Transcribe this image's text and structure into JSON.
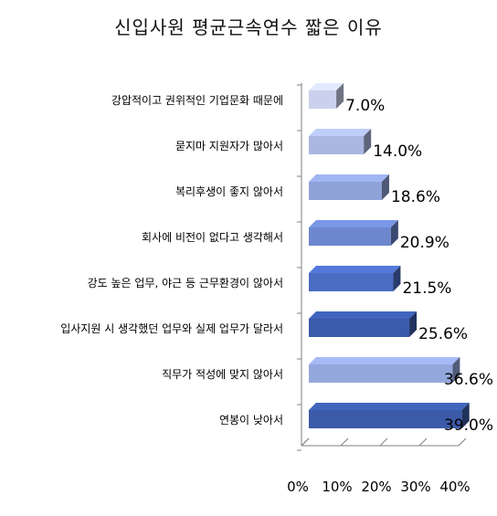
{
  "chart_data": {
    "type": "bar",
    "orientation": "horizontal",
    "style": "3d",
    "title": "신입사원 평균근속연수 짧은 이유",
    "categories": [
      "강압적이고 권위적인 기업문화 때문에",
      "묻지마 지원자가 많아서",
      "복리후생이 좋지 않아서",
      "회사에 비전이 없다고 생각해서",
      "강도 높은 업무, 야근 등 근무환경이 않아서",
      "입사지원 시 생각했던 업무와 실제 업무가 달라서",
      "직무가 적성에 맞지 않아서",
      "연봉이 낮아서"
    ],
    "values": [
      7.0,
      14.0,
      18.6,
      20.9,
      21.5,
      25.6,
      36.6,
      39.0
    ],
    "value_labels": [
      "7.0%",
      "14.0%",
      "18.6%",
      "20.9%",
      "21.5%",
      "25.6%",
      "36.6%",
      "39.0%"
    ],
    "bar_colors": [
      "#c9d1ec",
      "#aab7e0",
      "#8fa2d8",
      "#6d87cf",
      "#4a6cc3",
      "#3a5aaa",
      "#94a7dc",
      "#3b5aa8"
    ],
    "xlim": [
      0,
      40
    ],
    "xticks": [
      0,
      10,
      20,
      30,
      40
    ],
    "xtick_labels": [
      "0%",
      "10%",
      "20%",
      "30%",
      "40%"
    ],
    "grid": false,
    "legend": "none"
  }
}
